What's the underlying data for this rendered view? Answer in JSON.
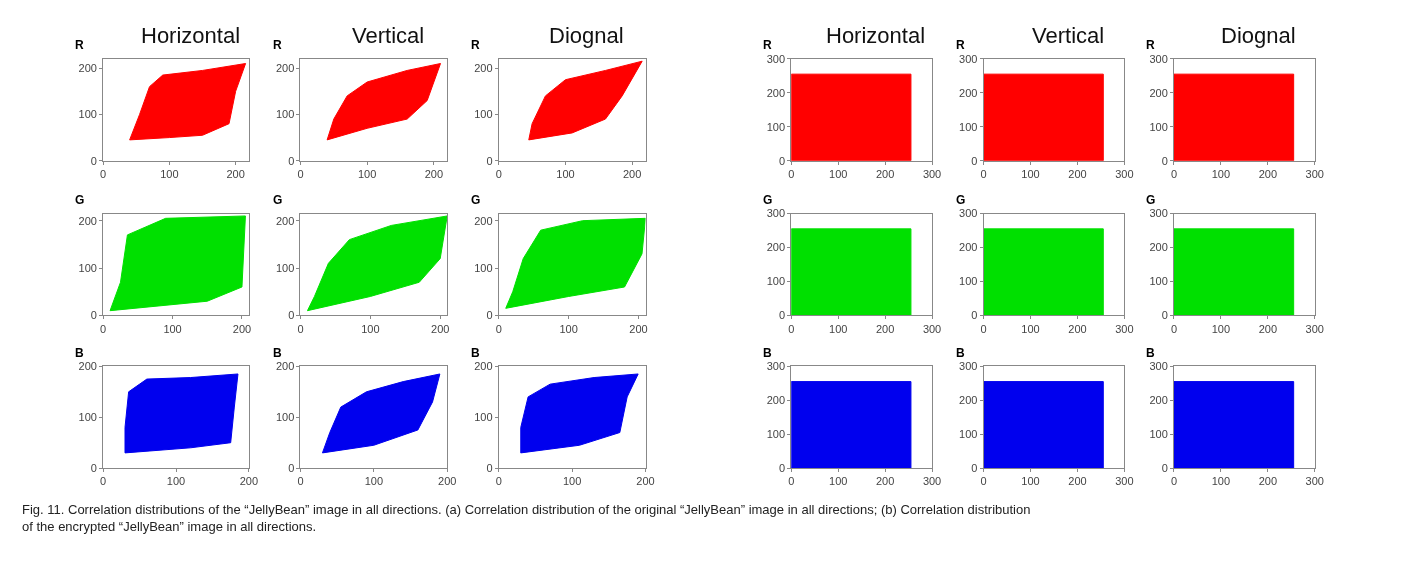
{
  "chart_data": [
    {
      "type": "area",
      "title": "Horizontal",
      "ylabel": "R",
      "xlim": [
        0,
        220
      ],
      "ylim": [
        0,
        220
      ],
      "xticks": [
        0,
        100,
        200
      ],
      "yticks": [
        0,
        100,
        200
      ],
      "grid": false,
      "series": [
        {
          "color": "#ff0000",
          "x": [
            40,
            100,
            150,
            190,
            200,
            215,
            150,
            90,
            70,
            55,
            40
          ],
          "values": [
            45,
            50,
            55,
            80,
            150,
            210,
            195,
            185,
            160,
            100,
            45
          ]
        }
      ]
    },
    {
      "type": "area",
      "title": "Vertical",
      "ylabel": "R",
      "xlim": [
        0,
        220
      ],
      "ylim": [
        0,
        220
      ],
      "xticks": [
        0,
        100,
        200
      ],
      "yticks": [
        0,
        100,
        200
      ],
      "grid": false,
      "series": [
        {
          "color": "#ff0000",
          "x": [
            40,
            100,
            160,
            190,
            210,
            160,
            100,
            70,
            50,
            40
          ],
          "values": [
            45,
            70,
            90,
            130,
            210,
            195,
            170,
            140,
            90,
            45
          ]
        }
      ]
    },
    {
      "type": "area",
      "title": "Diognal",
      "ylabel": "R",
      "xlim": [
        0,
        220
      ],
      "ylim": [
        0,
        220
      ],
      "xticks": [
        0,
        100,
        200
      ],
      "yticks": [
        0,
        100,
        200
      ],
      "grid": false,
      "series": [
        {
          "color": "#ff0000",
          "x": [
            45,
            110,
            160,
            185,
            215,
            160,
            100,
            70,
            50,
            45
          ],
          "values": [
            45,
            60,
            90,
            140,
            215,
            195,
            175,
            140,
            80,
            45
          ]
        }
      ]
    },
    {
      "type": "area",
      "title": "Horizontal",
      "ylabel": "R",
      "xlim": [
        0,
        300
      ],
      "ylim": [
        0,
        300
      ],
      "xticks": [
        0,
        100,
        200,
        300
      ],
      "yticks": [
        0,
        100,
        200,
        300
      ],
      "grid": false,
      "series": [
        {
          "color": "#ff0000",
          "x": [
            0,
            255,
            255,
            0,
            0
          ],
          "values": [
            0,
            0,
            255,
            255,
            0
          ]
        }
      ]
    },
    {
      "type": "area",
      "title": "Vertical",
      "ylabel": "R",
      "xlim": [
        0,
        300
      ],
      "ylim": [
        0,
        300
      ],
      "xticks": [
        0,
        100,
        200,
        300
      ],
      "yticks": [
        0,
        100,
        200,
        300
      ],
      "grid": false,
      "series": [
        {
          "color": "#ff0000",
          "x": [
            0,
            255,
            255,
            0,
            0
          ],
          "values": [
            0,
            0,
            255,
            255,
            0
          ]
        }
      ]
    },
    {
      "type": "area",
      "title": "Diognal",
      "ylabel": "R",
      "xlim": [
        0,
        300
      ],
      "ylim": [
        0,
        300
      ],
      "xticks": [
        0,
        100,
        200,
        300
      ],
      "yticks": [
        0,
        100,
        200,
        300
      ],
      "grid": false,
      "series": [
        {
          "color": "#ff0000",
          "x": [
            0,
            255,
            255,
            0,
            0
          ],
          "values": [
            0,
            0,
            255,
            255,
            0
          ]
        }
      ]
    },
    {
      "type": "area",
      "ylabel": "G",
      "xlim": [
        0,
        210
      ],
      "ylim": [
        0,
        215
      ],
      "xticks": [
        0,
        100,
        200
      ],
      "yticks": [
        0,
        100,
        200
      ],
      "grid": false,
      "series": [
        {
          "color": "#00e000",
          "x": [
            10,
            150,
            200,
            205,
            90,
            35,
            25,
            10
          ],
          "values": [
            10,
            30,
            60,
            210,
            205,
            170,
            70,
            10
          ]
        }
      ]
    },
    {
      "type": "area",
      "ylabel": "G",
      "xlim": [
        0,
        210
      ],
      "ylim": [
        0,
        215
      ],
      "xticks": [
        0,
        100,
        200
      ],
      "yticks": [
        0,
        100,
        200
      ],
      "grid": false,
      "series": [
        {
          "color": "#00e000",
          "x": [
            10,
            100,
            170,
            200,
            210,
            130,
            70,
            40,
            20,
            10
          ],
          "values": [
            10,
            40,
            70,
            120,
            210,
            190,
            160,
            110,
            40,
            10
          ]
        }
      ]
    },
    {
      "type": "area",
      "ylabel": "G",
      "xlim": [
        0,
        210
      ],
      "ylim": [
        0,
        215
      ],
      "xticks": [
        0,
        100,
        200
      ],
      "yticks": [
        0,
        100,
        200
      ],
      "grid": false,
      "series": [
        {
          "color": "#00e000",
          "x": [
            10,
            100,
            180,
            205,
            210,
            120,
            60,
            35,
            20,
            10
          ],
          "values": [
            15,
            40,
            60,
            130,
            205,
            200,
            180,
            120,
            50,
            15
          ]
        }
      ]
    },
    {
      "type": "area",
      "ylabel": "G",
      "xlim": [
        0,
        300
      ],
      "ylim": [
        0,
        300
      ],
      "xticks": [
        0,
        100,
        200,
        300
      ],
      "yticks": [
        0,
        100,
        200,
        300
      ],
      "grid": false,
      "series": [
        {
          "color": "#00e000",
          "x": [
            0,
            255,
            255,
            0,
            0
          ],
          "values": [
            0,
            0,
            255,
            255,
            0
          ]
        }
      ]
    },
    {
      "type": "area",
      "ylabel": "G",
      "xlim": [
        0,
        300
      ],
      "ylim": [
        0,
        300
      ],
      "xticks": [
        0,
        100,
        200,
        300
      ],
      "yticks": [
        0,
        100,
        200,
        300
      ],
      "grid": false,
      "series": [
        {
          "color": "#00e000",
          "x": [
            0,
            255,
            255,
            0,
            0
          ],
          "values": [
            0,
            0,
            255,
            255,
            0
          ]
        }
      ]
    },
    {
      "type": "area",
      "ylabel": "G",
      "xlim": [
        0,
        300
      ],
      "ylim": [
        0,
        300
      ],
      "xticks": [
        0,
        100,
        200,
        300
      ],
      "yticks": [
        0,
        100,
        200,
        300
      ],
      "grid": false,
      "series": [
        {
          "color": "#00e000",
          "x": [
            0,
            255,
            255,
            0,
            0
          ],
          "values": [
            0,
            0,
            255,
            255,
            0
          ]
        }
      ]
    },
    {
      "type": "area",
      "ylabel": "B",
      "xlim": [
        0,
        200
      ],
      "ylim": [
        0,
        200
      ],
      "xticks": [
        0,
        100,
        200
      ],
      "yticks": [
        0,
        100,
        200
      ],
      "grid": false,
      "series": [
        {
          "color": "#0000ee",
          "x": [
            30,
            120,
            175,
            180,
            185,
            120,
            60,
            35,
            30,
            30
          ],
          "values": [
            30,
            40,
            50,
            120,
            185,
            178,
            175,
            150,
            80,
            30
          ]
        }
      ]
    },
    {
      "type": "area",
      "ylabel": "B",
      "xlim": [
        0,
        200
      ],
      "ylim": [
        0,
        200
      ],
      "xticks": [
        0,
        100,
        200
      ],
      "yticks": [
        0,
        100,
        200
      ],
      "grid": false,
      "series": [
        {
          "color": "#0000ee",
          "x": [
            30,
            100,
            160,
            180,
            190,
            140,
            90,
            55,
            40,
            30
          ],
          "values": [
            30,
            45,
            75,
            130,
            185,
            170,
            150,
            120,
            70,
            30
          ]
        }
      ]
    },
    {
      "type": "area",
      "ylabel": "B",
      "xlim": [
        0,
        200
      ],
      "ylim": [
        0,
        200
      ],
      "xticks": [
        0,
        100,
        200
      ],
      "yticks": [
        0,
        100,
        200
      ],
      "grid": false,
      "series": [
        {
          "color": "#0000ee",
          "x": [
            30,
            110,
            165,
            175,
            190,
            130,
            70,
            40,
            30,
            30
          ],
          "values": [
            30,
            45,
            70,
            140,
            185,
            178,
            165,
            140,
            80,
            30
          ]
        }
      ]
    },
    {
      "type": "area",
      "ylabel": "B",
      "xlim": [
        0,
        300
      ],
      "ylim": [
        0,
        300
      ],
      "xticks": [
        0,
        100,
        200,
        300
      ],
      "yticks": [
        0,
        100,
        200,
        300
      ],
      "grid": false,
      "series": [
        {
          "color": "#0000ee",
          "x": [
            0,
            255,
            255,
            0,
            0
          ],
          "values": [
            0,
            0,
            255,
            255,
            0
          ]
        }
      ]
    },
    {
      "type": "area",
      "ylabel": "B",
      "xlim": [
        0,
        300
      ],
      "ylim": [
        0,
        300
      ],
      "xticks": [
        0,
        100,
        200,
        300
      ],
      "yticks": [
        0,
        100,
        200,
        300
      ],
      "grid": false,
      "series": [
        {
          "color": "#0000ee",
          "x": [
            0,
            255,
            255,
            0,
            0
          ],
          "values": [
            0,
            0,
            255,
            255,
            0
          ]
        }
      ]
    },
    {
      "type": "area",
      "ylabel": "B",
      "xlim": [
        0,
        300
      ],
      "ylim": [
        0,
        300
      ],
      "xticks": [
        0,
        100,
        200,
        300
      ],
      "yticks": [
        0,
        100,
        200,
        300
      ],
      "grid": false,
      "series": [
        {
          "color": "#0000ee",
          "x": [
            0,
            255,
            255,
            0,
            0
          ],
          "values": [
            0,
            0,
            255,
            255,
            0
          ]
        }
      ],
      "annotations": [
        "Fig. 11. Correlation distributions of the “JellyBean” image in all directions. (a) Correlation distribution of the original “JellyBean” image in all directions; (b) Correlation distribution of the encrypted “JellyBean” image in all directions."
      ]
    }
  ]
}
